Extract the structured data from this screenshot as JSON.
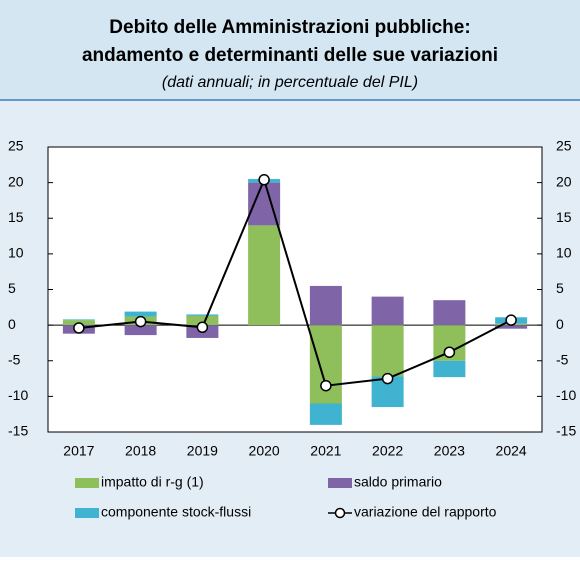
{
  "chart_data": {
    "type": "bar",
    "title": [
      "Debito delle Amministrazioni pubbliche:",
      "andamento e determinanti delle sue variazioni"
    ],
    "subtitle": "(dati annuali; in percentuale del PIL)",
    "categories": [
      "2017",
      "2018",
      "2019",
      "2020",
      "2021",
      "2022",
      "2023",
      "2024"
    ],
    "series": [
      {
        "name": "impatto di r-g (1)",
        "color": "#8fbf5a",
        "values": [
          0.7,
          1.2,
          1.3,
          14.0,
          -11.0,
          -7.2,
          -5.0,
          0.2
        ]
      },
      {
        "name": "saldo primario",
        "color": "#7f64a8",
        "values": [
          -1.2,
          -1.4,
          -1.8,
          6.0,
          5.5,
          4.0,
          3.5,
          -0.5
        ]
      },
      {
        "name": "componente stock-flussi",
        "color": "#3fb3cf",
        "values": [
          0.1,
          0.7,
          0.2,
          0.5,
          -3.0,
          -4.3,
          -2.3,
          0.9
        ]
      },
      {
        "name": "variazione del rapporto",
        "type": "line",
        "color": "#000000",
        "values": [
          -0.4,
          0.5,
          -0.3,
          20.4,
          -8.5,
          -7.5,
          -3.8,
          0.7
        ]
      }
    ],
    "stacked": true,
    "ylim": [
      -15,
      25
    ],
    "yticks": [
      -15,
      -10,
      -5,
      0,
      5,
      10,
      15,
      20,
      25
    ]
  }
}
